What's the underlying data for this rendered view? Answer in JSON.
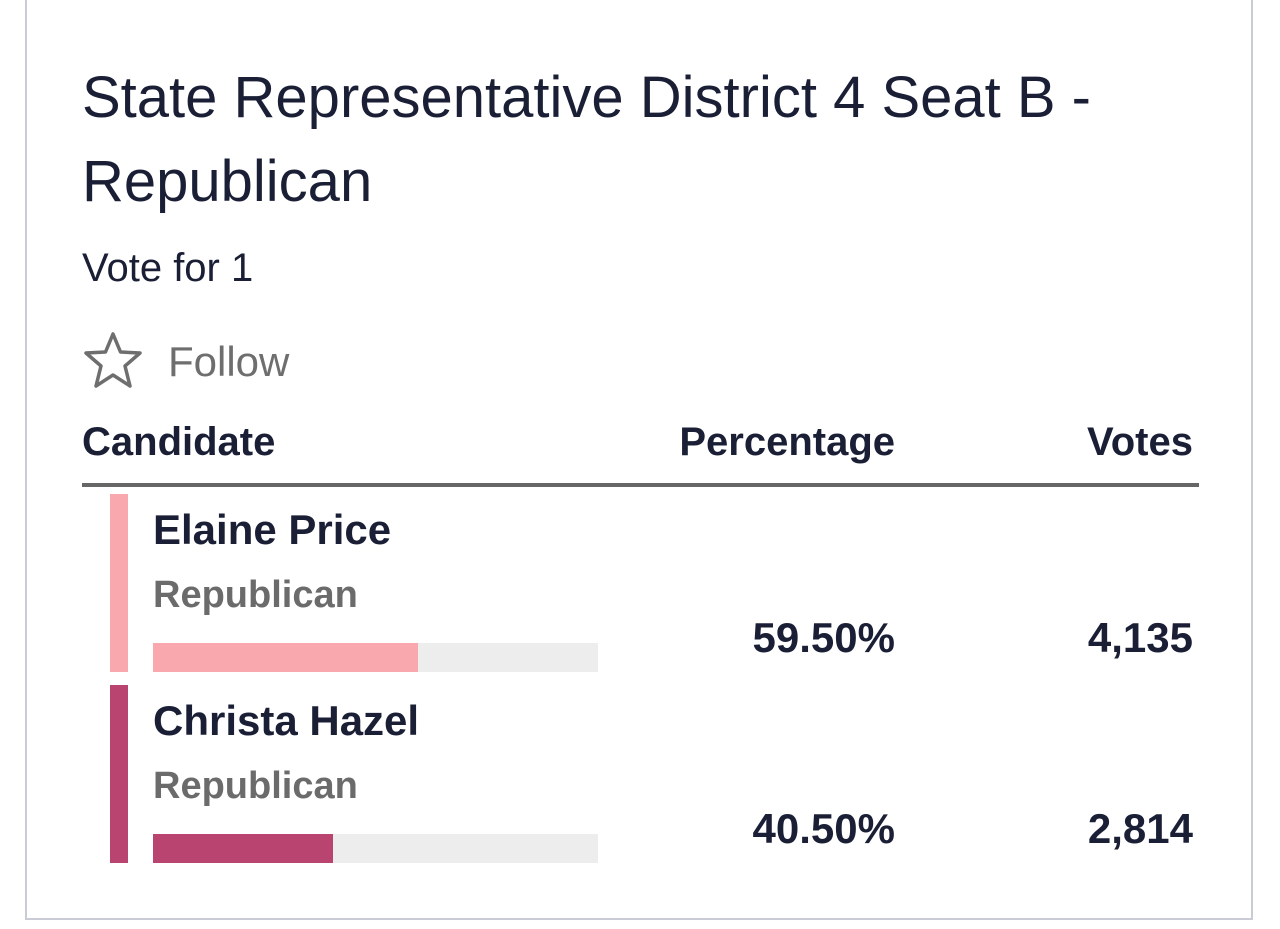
{
  "header": {
    "title": "State Representative District 4 Seat B - Republican",
    "subtitle": "Vote for 1",
    "follow": "Follow"
  },
  "table": {
    "columns": [
      "Candidate",
      "Percentage",
      "Votes"
    ],
    "rows": [
      {
        "name": "Elaine Price",
        "party": "Republican",
        "percentage": {
          "value": 59.5,
          "label": "59.50%"
        },
        "votes": {
          "value": 4135,
          "label": "4,135"
        },
        "color": "#f9a9ae"
      },
      {
        "name": "Christa Hazel",
        "party": "Republican",
        "percentage": {
          "value": 40.5,
          "label": "40.50%"
        },
        "votes": {
          "value": 2814,
          "label": "2,814"
        },
        "color": "#b94470"
      }
    ]
  }
}
